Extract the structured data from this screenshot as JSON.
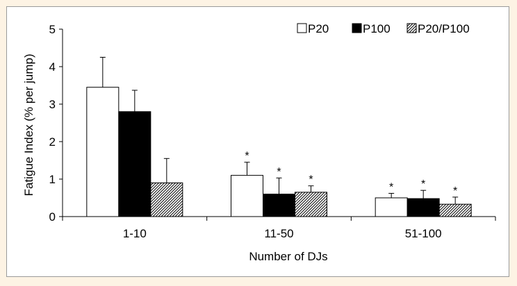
{
  "chart_data": {
    "type": "bar",
    "title": "",
    "xlabel": "Number of DJs",
    "ylabel": "Fatigue Index (% per jump)",
    "ylim": [
      0,
      5
    ],
    "yticks": [
      "0",
      "1",
      "2",
      "3",
      "4",
      "5"
    ],
    "categories": [
      "1-10",
      "11-50",
      "51-100"
    ],
    "series": [
      {
        "name": "P20",
        "values": [
          3.45,
          1.1,
          0.5
        ],
        "errors": [
          0.8,
          0.35,
          0.12
        ],
        "significant": [
          false,
          true,
          true
        ],
        "fill": "white"
      },
      {
        "name": "P100",
        "values": [
          2.8,
          0.6,
          0.48
        ],
        "errors": [
          0.57,
          0.43,
          0.22
        ],
        "significant": [
          false,
          true,
          true
        ],
        "fill": "black"
      },
      {
        "name": "P20/P100",
        "values": [
          0.9,
          0.65,
          0.33
        ],
        "errors": [
          0.65,
          0.17,
          0.19
        ],
        "significant": [
          false,
          true,
          true
        ],
        "fill": "hatched"
      }
    ],
    "significance_marker": "*",
    "legend_position": "top-right",
    "grid": false
  }
}
